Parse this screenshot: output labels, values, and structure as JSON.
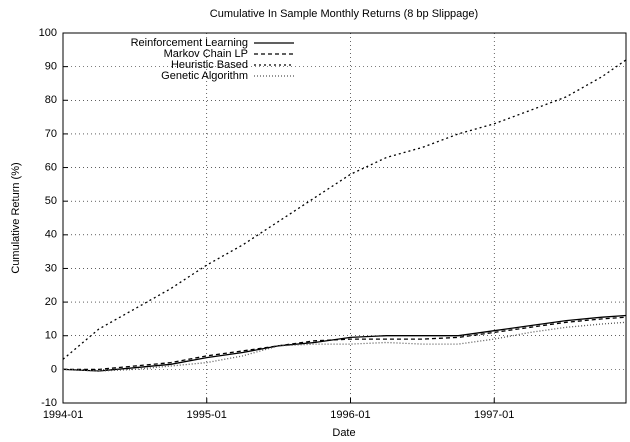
{
  "chart_data": {
    "type": "line",
    "title": "Cumulative In Sample Monthly Returns (8 bp Slippage)",
    "x_label": "Date",
    "y_label": "Cumulative Return (%)",
    "x": [
      "1994-01",
      "1994-04",
      "1994-07",
      "1994-10",
      "1995-01",
      "1995-04",
      "1995-07",
      "1995-10",
      "1996-01",
      "1996-04",
      "1996-07",
      "1996-10",
      "1997-01",
      "1997-04",
      "1997-07",
      "1997-10",
      "1997-12"
    ],
    "xlim": [
      "1994-01",
      "1997-12"
    ],
    "xticks": [
      "1994-01",
      "1995-01",
      "1996-01",
      "1997-01"
    ],
    "ylim": [
      -10,
      100
    ],
    "yticks": [
      -10,
      0,
      10,
      20,
      30,
      40,
      50,
      60,
      70,
      80,
      90,
      100
    ],
    "grid": true,
    "legend": "top-left",
    "series": [
      {
        "name": "Reinforcement Learning",
        "color": "#000000",
        "dash": "none",
        "values": [
          0,
          -0.5,
          0.5,
          1.5,
          3.5,
          5,
          7,
          8,
          9.5,
          10,
          10,
          10,
          11.5,
          13,
          14.5,
          15.5,
          16
        ]
      },
      {
        "name": "Markov Chain LP",
        "color": "#000000",
        "dash": "4,3",
        "values": [
          0,
          0,
          1,
          2,
          4,
          5.5,
          7,
          8.5,
          9,
          9,
          9,
          9.5,
          11,
          12.5,
          14,
          15,
          15.5
        ]
      },
      {
        "name": "Heuristic Based",
        "color": "#000000",
        "dash": "2,3",
        "values": [
          3,
          12,
          18,
          24,
          31,
          37,
          44,
          51,
          58,
          63,
          66,
          70,
          73,
          77,
          81,
          87,
          92
        ]
      },
      {
        "name": "Genetic Algorithm",
        "color": "#555555",
        "dash": "1,2",
        "values": [
          0,
          -0.5,
          0,
          1,
          2,
          4,
          7,
          7.5,
          7.5,
          8,
          7.5,
          7.5,
          9,
          11,
          12.5,
          13.5,
          14
        ]
      }
    ]
  }
}
